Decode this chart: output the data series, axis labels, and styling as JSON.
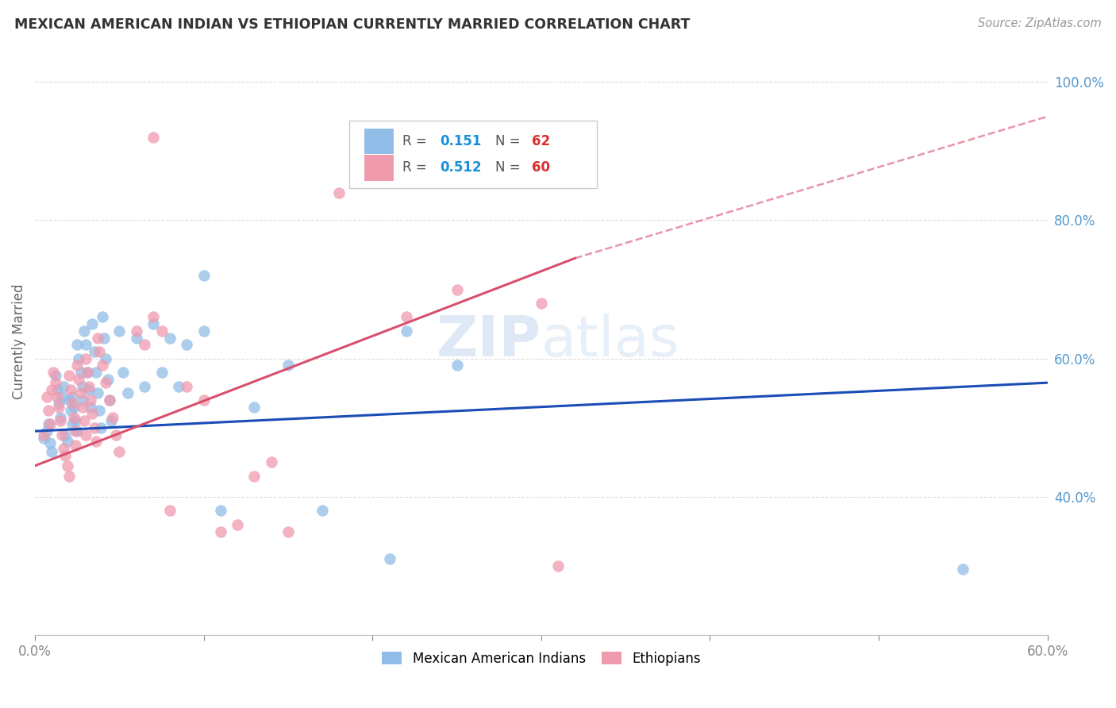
{
  "title": "MEXICAN AMERICAN INDIAN VS ETHIOPIAN CURRENTLY MARRIED CORRELATION CHART",
  "source": "Source: ZipAtlas.com",
  "ylabel": "Currently Married",
  "xlim": [
    0.0,
    0.6
  ],
  "ylim": [
    0.2,
    1.05
  ],
  "x_ticks": [
    0.0,
    0.1,
    0.2,
    0.3,
    0.4,
    0.5,
    0.6
  ],
  "x_tick_labels": [
    "0.0%",
    "",
    "",
    "",
    "",
    "",
    "60.0%"
  ],
  "y_ticks": [
    0.4,
    0.6,
    0.8,
    1.0
  ],
  "y_tick_labels": [
    "40.0%",
    "60.0%",
    "80.0%",
    "100.0%"
  ],
  "legend_label1": "Mexican American Indians",
  "legend_label2": "Ethiopians",
  "blue_color": "#92BDE8",
  "pink_color": "#F09AAE",
  "blue_line_color": "#1A4DB5",
  "pink_line_color": "#D94F6E",
  "r_value_color": "#1A90D9",
  "n_value_color": "#D93030",
  "watermark_color": "#C5D8EE",
  "scatter_blue": [
    [
      0.005,
      0.485
    ],
    [
      0.007,
      0.495
    ],
    [
      0.008,
      0.505
    ],
    [
      0.009,
      0.478
    ],
    [
      0.01,
      0.465
    ],
    [
      0.012,
      0.575
    ],
    [
      0.013,
      0.555
    ],
    [
      0.014,
      0.535
    ],
    [
      0.015,
      0.515
    ],
    [
      0.016,
      0.545
    ],
    [
      0.017,
      0.56
    ],
    [
      0.018,
      0.49
    ],
    [
      0.019,
      0.48
    ],
    [
      0.02,
      0.54
    ],
    [
      0.021,
      0.525
    ],
    [
      0.022,
      0.505
    ],
    [
      0.022,
      0.545
    ],
    [
      0.023,
      0.53
    ],
    [
      0.024,
      0.51
    ],
    [
      0.025,
      0.495
    ],
    [
      0.025,
      0.62
    ],
    [
      0.026,
      0.6
    ],
    [
      0.027,
      0.58
    ],
    [
      0.028,
      0.56
    ],
    [
      0.028,
      0.54
    ],
    [
      0.029,
      0.64
    ],
    [
      0.03,
      0.62
    ],
    [
      0.031,
      0.58
    ],
    [
      0.032,
      0.555
    ],
    [
      0.033,
      0.53
    ],
    [
      0.034,
      0.65
    ],
    [
      0.035,
      0.61
    ],
    [
      0.036,
      0.58
    ],
    [
      0.037,
      0.55
    ],
    [
      0.038,
      0.525
    ],
    [
      0.039,
      0.5
    ],
    [
      0.04,
      0.66
    ],
    [
      0.041,
      0.63
    ],
    [
      0.042,
      0.6
    ],
    [
      0.043,
      0.57
    ],
    [
      0.044,
      0.54
    ],
    [
      0.045,
      0.51
    ],
    [
      0.05,
      0.64
    ],
    [
      0.052,
      0.58
    ],
    [
      0.055,
      0.55
    ],
    [
      0.06,
      0.63
    ],
    [
      0.065,
      0.56
    ],
    [
      0.07,
      0.65
    ],
    [
      0.075,
      0.58
    ],
    [
      0.08,
      0.63
    ],
    [
      0.085,
      0.56
    ],
    [
      0.09,
      0.62
    ],
    [
      0.1,
      0.64
    ],
    [
      0.11,
      0.38
    ],
    [
      0.13,
      0.53
    ],
    [
      0.15,
      0.59
    ],
    [
      0.17,
      0.38
    ],
    [
      0.21,
      0.31
    ],
    [
      0.22,
      0.64
    ],
    [
      0.25,
      0.59
    ],
    [
      0.55,
      0.295
    ],
    [
      0.1,
      0.72
    ]
  ],
  "scatter_pink": [
    [
      0.005,
      0.49
    ],
    [
      0.007,
      0.545
    ],
    [
      0.008,
      0.525
    ],
    [
      0.009,
      0.505
    ],
    [
      0.01,
      0.555
    ],
    [
      0.011,
      0.58
    ],
    [
      0.012,
      0.565
    ],
    [
      0.013,
      0.545
    ],
    [
      0.014,
      0.53
    ],
    [
      0.015,
      0.51
    ],
    [
      0.016,
      0.49
    ],
    [
      0.017,
      0.47
    ],
    [
      0.018,
      0.46
    ],
    [
      0.019,
      0.445
    ],
    [
      0.02,
      0.43
    ],
    [
      0.02,
      0.575
    ],
    [
      0.021,
      0.555
    ],
    [
      0.022,
      0.535
    ],
    [
      0.023,
      0.515
    ],
    [
      0.024,
      0.495
    ],
    [
      0.024,
      0.475
    ],
    [
      0.025,
      0.59
    ],
    [
      0.026,
      0.57
    ],
    [
      0.027,
      0.55
    ],
    [
      0.028,
      0.53
    ],
    [
      0.029,
      0.51
    ],
    [
      0.03,
      0.49
    ],
    [
      0.03,
      0.6
    ],
    [
      0.031,
      0.58
    ],
    [
      0.032,
      0.56
    ],
    [
      0.033,
      0.54
    ],
    [
      0.034,
      0.52
    ],
    [
      0.035,
      0.5
    ],
    [
      0.036,
      0.48
    ],
    [
      0.037,
      0.63
    ],
    [
      0.038,
      0.61
    ],
    [
      0.04,
      0.59
    ],
    [
      0.042,
      0.565
    ],
    [
      0.044,
      0.54
    ],
    [
      0.046,
      0.515
    ],
    [
      0.048,
      0.49
    ],
    [
      0.05,
      0.465
    ],
    [
      0.06,
      0.64
    ],
    [
      0.065,
      0.62
    ],
    [
      0.07,
      0.66
    ],
    [
      0.075,
      0.64
    ],
    [
      0.08,
      0.38
    ],
    [
      0.09,
      0.56
    ],
    [
      0.1,
      0.54
    ],
    [
      0.11,
      0.35
    ],
    [
      0.12,
      0.36
    ],
    [
      0.13,
      0.43
    ],
    [
      0.14,
      0.45
    ],
    [
      0.15,
      0.35
    ],
    [
      0.18,
      0.84
    ],
    [
      0.22,
      0.66
    ],
    [
      0.25,
      0.7
    ],
    [
      0.3,
      0.68
    ],
    [
      0.31,
      0.3
    ],
    [
      0.07,
      0.92
    ]
  ],
  "blue_line": {
    "x0": 0.0,
    "y0": 0.495,
    "x1": 0.6,
    "y1": 0.565
  },
  "pink_line_solid": {
    "x0": 0.0,
    "y0": 0.445,
    "x1": 0.32,
    "y1": 0.745
  },
  "pink_line_dash": {
    "x0": 0.32,
    "y0": 0.745,
    "x1": 0.6,
    "y1": 0.95
  }
}
